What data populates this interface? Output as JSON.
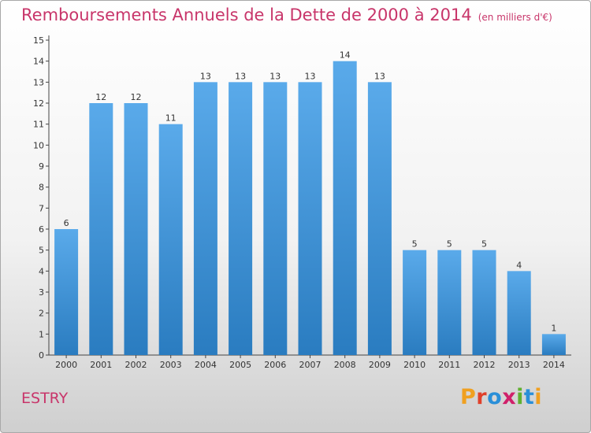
{
  "header": {
    "title": "Remboursements Annuels de la Dette de 2000 à 2014",
    "unit": "(en milliers d'€)"
  },
  "footer": {
    "commune": "ESTRY",
    "logo_text": "Proxiti"
  },
  "colors": {
    "title": "#c8356a",
    "bar_top": "#5aaaea",
    "bar_bottom": "#2a7cc0",
    "logo": [
      "#f0a020",
      "#e0402a",
      "#2a8fd8",
      "#d0206a",
      "#60b030",
      "#2a8fd8",
      "#f0a020"
    ]
  },
  "chart_data": {
    "type": "bar",
    "title": "Remboursements Annuels de la Dette de 2000 à 2014",
    "unit": "(en milliers d'€)",
    "categories": [
      "2000",
      "2001",
      "2002",
      "2003",
      "2004",
      "2005",
      "2006",
      "2007",
      "2008",
      "2009",
      "2010",
      "2011",
      "2012",
      "2013",
      "2014"
    ],
    "values": [
      6,
      12,
      12,
      11,
      13,
      13,
      13,
      13,
      14,
      13,
      5,
      5,
      5,
      4,
      1
    ],
    "ylim": [
      0,
      15
    ],
    "yticks": [
      0,
      1,
      2,
      3,
      4,
      5,
      6,
      7,
      8,
      9,
      10,
      11,
      12,
      13,
      14,
      15
    ],
    "grid": false,
    "legend": "none"
  }
}
